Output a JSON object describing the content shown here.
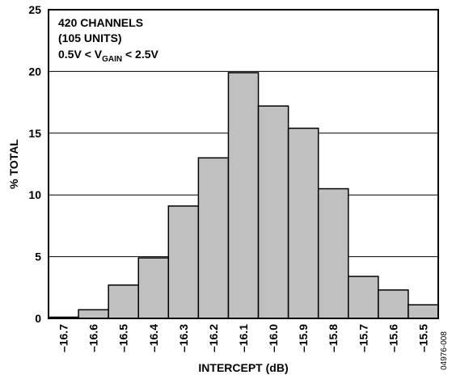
{
  "chart_data": {
    "type": "bar",
    "xlabel": "INTERCEPT (dB)",
    "ylabel": "% TOTAL",
    "ylim": [
      0,
      25
    ],
    "yticks": [
      0,
      5,
      10,
      15,
      20,
      25
    ],
    "grid": "horizontal",
    "bar_color": "#c0c0c0",
    "categories": [
      "–16.7",
      "–16.6",
      "–16.5",
      "–16.4",
      "–16.3",
      "–16.2",
      "–16.1",
      "–16.0",
      "–15.9",
      "–15.8",
      "–15.7",
      "–15.6",
      "–15.5"
    ],
    "values": [
      0.1,
      0.7,
      2.7,
      4.9,
      9.1,
      13.0,
      19.9,
      17.2,
      15.4,
      10.5,
      3.4,
      2.3,
      1.1
    ],
    "annotations": {
      "line1": "420 CHANNELS",
      "line2": "(105 UNITS)",
      "line3_prefix": "0.5V < V",
      "line3_sub": "GAIN",
      "line3_suffix": " < 2.5V"
    },
    "figure_id": "04976-008"
  }
}
